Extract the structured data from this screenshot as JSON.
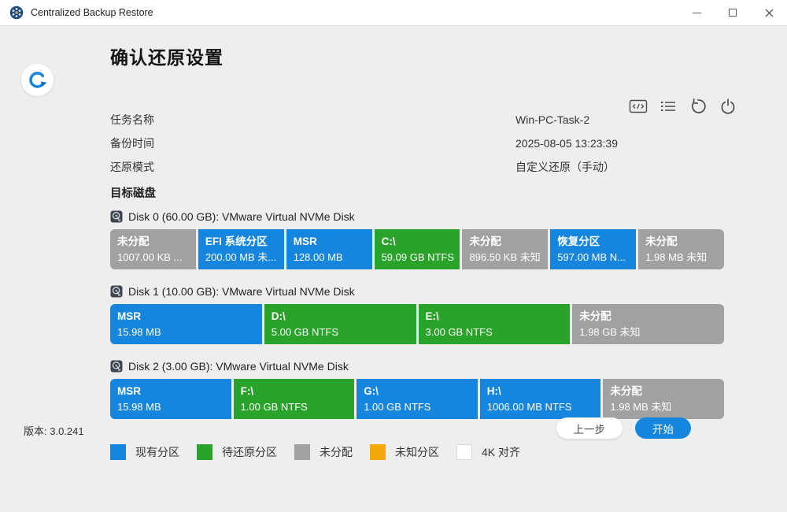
{
  "window": {
    "title": "Centralized Backup Restore",
    "control_icons": [
      "minimize-icon",
      "maximize-icon",
      "close-icon"
    ]
  },
  "page": {
    "title": "确认还原设置"
  },
  "toolbar": {
    "icons": [
      "console-window-icon",
      "task-list-icon",
      "undo-restore-icon",
      "power-icon"
    ]
  },
  "info_rows": [
    {
      "label": "任务名称",
      "value": "Win-PC-Task-2"
    },
    {
      "label": "备份时间",
      "value": "2025-08-05 13:23:39"
    },
    {
      "label": "还原模式",
      "value": "自定义还原（手动）"
    }
  ],
  "target": {
    "section_title": "目标磁盘",
    "disks": [
      {
        "label": "Disk 0 (60.00 GB): VMware Virtual NVMe Disk",
        "partitions": [
          {
            "name": "未分配",
            "size": "1007.00 KB ...",
            "type": "unallocated"
          },
          {
            "name": "EFI 系统分区",
            "size": "200.00 MB 未...",
            "type": "existing"
          },
          {
            "name": "MSR",
            "size": "128.00 MB",
            "type": "existing"
          },
          {
            "name": "C:\\",
            "size": "59.09 GB NTFS",
            "type": "restore"
          },
          {
            "name": "未分配",
            "size": "896.50 KB 未知",
            "type": "unallocated"
          },
          {
            "name": "恢复分区",
            "size": "597.00 MB N...",
            "type": "existing"
          },
          {
            "name": "未分配",
            "size": "1.98 MB 未知",
            "type": "unallocated"
          }
        ]
      },
      {
        "label": "Disk 1 (10.00 GB): VMware Virtual NVMe Disk",
        "partitions": [
          {
            "name": "MSR",
            "size": "15.98 MB",
            "type": "existing"
          },
          {
            "name": "D:\\",
            "size": "5.00 GB NTFS",
            "type": "restore"
          },
          {
            "name": "E:\\",
            "size": "3.00 GB NTFS",
            "type": "restore"
          },
          {
            "name": "未分配",
            "size": "1.98 GB 未知",
            "type": "unallocated"
          }
        ]
      },
      {
        "label": "Disk 2 (3.00 GB): VMware Virtual NVMe Disk",
        "partitions": [
          {
            "name": "MSR",
            "size": "15.98 MB",
            "type": "existing"
          },
          {
            "name": "F:\\",
            "size": "1.00 GB NTFS",
            "type": "restore"
          },
          {
            "name": "G:\\",
            "size": "1.00 GB NTFS",
            "type": "existing"
          },
          {
            "name": "H:\\",
            "size": "1006.00 MB NTFS",
            "type": "existing"
          },
          {
            "name": "未分配",
            "size": "1.98 MB 未知",
            "type": "unallocated"
          }
        ]
      }
    ]
  },
  "legend": [
    {
      "label": "现有分区",
      "type": "existing"
    },
    {
      "label": "待还原分区",
      "type": "restore"
    },
    {
      "label": "未分配",
      "type": "unallocated"
    },
    {
      "label": "未知分区",
      "type": "unknown"
    },
    {
      "label": "4K 对齐",
      "type": "align4k"
    }
  ],
  "colors": {
    "existing": "#1685dd",
    "restore": "#2aa32a",
    "unallocated": "#a1a1a1",
    "unknown": "#f5a70a",
    "align4k": "#ffffff",
    "accent": "#1685dd"
  },
  "footer": {
    "version": "版本: 3.0.241",
    "back_label": "上一步",
    "start_label": "开始"
  }
}
